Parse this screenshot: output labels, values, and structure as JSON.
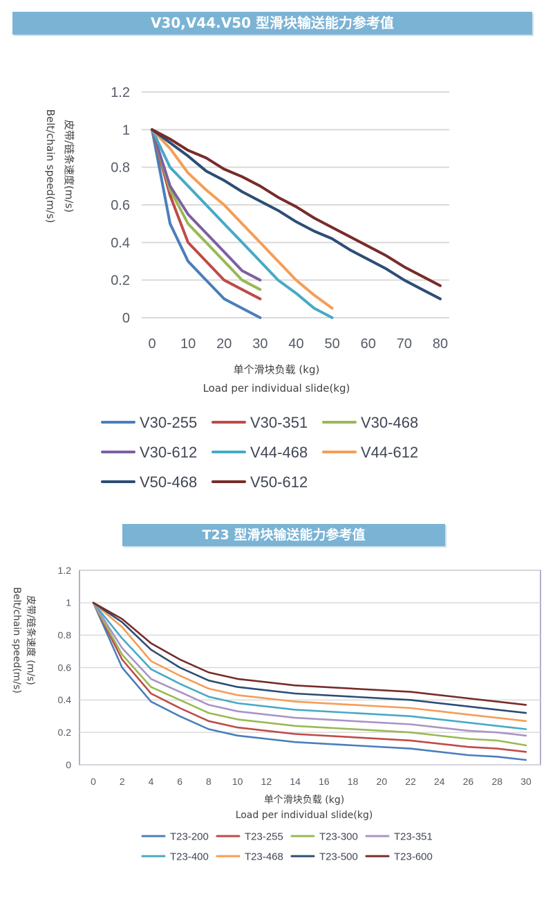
{
  "sections": [
    {
      "banner": "V30,V44.V50  型滑块输送能力参考值"
    },
    {
      "banner": "T23  型滑块输送能力参考值"
    }
  ],
  "chart_data": [
    {
      "type": "line",
      "title": "V30,V44.V50  型滑块输送能力参考值",
      "xlabel": [
        "单个滑块负载 (kg)",
        "Load per individual slide(kg)"
      ],
      "ylabel": [
        "皮带/链条速度(m/s)",
        "Belt/chain speed(m/s)"
      ],
      "xlim": [
        0,
        80
      ],
      "ylim": [
        0,
        1.2
      ],
      "xticks": [
        "0",
        "10",
        "20",
        "30",
        "40",
        "50",
        "60",
        "70",
        "80"
      ],
      "yticks": [
        "0",
        "0.2",
        "0.4",
        "0.6",
        "0.8",
        "1",
        "1.2"
      ],
      "grid": "horizontal",
      "legend_position": "bottom",
      "series": [
        {
          "name": "V30-255",
          "color": "#4a7ebb",
          "x": [
            0,
            5,
            10,
            15,
            20,
            25,
            30
          ],
          "y": [
            1,
            0.5,
            0.3,
            0.2,
            0.1,
            0.05,
            0
          ]
        },
        {
          "name": "V30-351",
          "color": "#be4b48",
          "x": [
            0,
            5,
            10,
            15,
            20,
            25,
            30
          ],
          "y": [
            1,
            0.65,
            0.4,
            0.3,
            0.2,
            0.15,
            0.1
          ]
        },
        {
          "name": "V30-468",
          "color": "#98b954",
          "x": [
            0,
            5,
            10,
            15,
            20,
            25,
            30
          ],
          "y": [
            1,
            0.68,
            0.5,
            0.4,
            0.3,
            0.2,
            0.15
          ]
        },
        {
          "name": "V30-612",
          "color": "#7d5fa0",
          "x": [
            0,
            5,
            10,
            15,
            20,
            25,
            30
          ],
          "y": [
            1,
            0.7,
            0.55,
            0.45,
            0.35,
            0.25,
            0.2
          ]
        },
        {
          "name": "V44-468",
          "color": "#46aac5",
          "x": [
            0,
            5,
            10,
            15,
            20,
            25,
            30,
            35,
            40,
            45,
            50
          ],
          "y": [
            1,
            0.8,
            0.7,
            0.6,
            0.5,
            0.4,
            0.3,
            0.2,
            0.13,
            0.05,
            0
          ]
        },
        {
          "name": "V44-612",
          "color": "#f59d56",
          "x": [
            0,
            5,
            10,
            15,
            20,
            25,
            30,
            35,
            40,
            45,
            50
          ],
          "y": [
            1,
            0.9,
            0.77,
            0.68,
            0.6,
            0.5,
            0.4,
            0.3,
            0.2,
            0.12,
            0.05
          ]
        },
        {
          "name": "V50-468",
          "color": "#2c4d75",
          "x": [
            0,
            5,
            10,
            15,
            20,
            25,
            30,
            35,
            40,
            45,
            50,
            55,
            60,
            65,
            70,
            75,
            80
          ],
          "y": [
            1,
            0.93,
            0.86,
            0.78,
            0.73,
            0.67,
            0.62,
            0.57,
            0.51,
            0.46,
            0.42,
            0.36,
            0.31,
            0.26,
            0.2,
            0.15,
            0.1
          ]
        },
        {
          "name": "V50-612",
          "color": "#772c2a",
          "x": [
            0,
            5,
            10,
            15,
            20,
            25,
            30,
            35,
            40,
            45,
            50,
            55,
            60,
            65,
            70,
            75,
            80
          ],
          "y": [
            1,
            0.95,
            0.89,
            0.85,
            0.79,
            0.75,
            0.7,
            0.64,
            0.59,
            0.53,
            0.48,
            0.43,
            0.38,
            0.33,
            0.27,
            0.22,
            0.17
          ]
        }
      ]
    },
    {
      "type": "line",
      "title": "T23  型滑块输送能力参考值",
      "xlabel": [
        "单个滑块负载 (kg)",
        "Load per individual slide(kg)"
      ],
      "ylabel": [
        "皮带/链条速度 (m/s)",
        "Belt/chain speed(m/s)"
      ],
      "xlim": [
        0,
        30
      ],
      "ylim": [
        0,
        1.2
      ],
      "xticks": [
        "0",
        "2",
        "4",
        "6",
        "8",
        "10",
        "12",
        "14",
        "16",
        "18",
        "20",
        "22",
        "24",
        "26",
        "28",
        "30"
      ],
      "yticks": [
        "0",
        "0.2",
        "0.4",
        "0.6",
        "0.8",
        "1",
        "1.2"
      ],
      "grid": "horizontal",
      "legend_position": "bottom",
      "series": [
        {
          "name": "T23-200",
          "color": "#4a7ebb",
          "x": [
            0,
            2,
            4,
            6,
            8,
            10,
            14,
            22,
            26,
            28,
            30
          ],
          "y": [
            1,
            0.6,
            0.39,
            0.3,
            0.22,
            0.18,
            0.14,
            0.1,
            0.06,
            0.05,
            0.03
          ]
        },
        {
          "name": "T23-255",
          "color": "#be4b48",
          "x": [
            0,
            2,
            4,
            6,
            8,
            10,
            14,
            22,
            26,
            28,
            30
          ],
          "y": [
            1,
            0.65,
            0.44,
            0.35,
            0.27,
            0.23,
            0.19,
            0.15,
            0.11,
            0.1,
            0.08
          ]
        },
        {
          "name": "T23-300",
          "color": "#98b954",
          "x": [
            0,
            2,
            4,
            6,
            8,
            10,
            14,
            22,
            26,
            28,
            30
          ],
          "y": [
            1,
            0.68,
            0.48,
            0.4,
            0.32,
            0.28,
            0.24,
            0.2,
            0.16,
            0.15,
            0.12
          ]
        },
        {
          "name": "T23-351",
          "color": "#a994c6",
          "x": [
            0,
            2,
            4,
            6,
            8,
            10,
            14,
            22,
            26,
            28,
            30
          ],
          "y": [
            1,
            0.72,
            0.53,
            0.45,
            0.37,
            0.33,
            0.29,
            0.25,
            0.21,
            0.2,
            0.18
          ]
        },
        {
          "name": "T23-400",
          "color": "#46aac5",
          "x": [
            0,
            2,
            4,
            6,
            8,
            10,
            14,
            22,
            26,
            28,
            30
          ],
          "y": [
            1,
            0.78,
            0.59,
            0.5,
            0.42,
            0.38,
            0.34,
            0.3,
            0.26,
            0.24,
            0.22
          ]
        },
        {
          "name": "T23-468",
          "color": "#f59d56",
          "x": [
            0,
            2,
            4,
            6,
            8,
            10,
            14,
            22,
            26,
            28,
            30
          ],
          "y": [
            1,
            0.85,
            0.64,
            0.55,
            0.47,
            0.43,
            0.39,
            0.35,
            0.31,
            0.29,
            0.27
          ]
        },
        {
          "name": "T23-500",
          "color": "#2c4d75",
          "x": [
            0,
            2,
            4,
            6,
            8,
            10,
            14,
            22,
            26,
            28,
            30
          ],
          "y": [
            1,
            0.88,
            0.71,
            0.6,
            0.52,
            0.48,
            0.44,
            0.4,
            0.36,
            0.34,
            0.32
          ]
        },
        {
          "name": "T23-600",
          "color": "#772c2a",
          "x": [
            0,
            2,
            4,
            6,
            8,
            10,
            14,
            22,
            26,
            28,
            30
          ],
          "y": [
            1,
            0.9,
            0.75,
            0.65,
            0.57,
            0.53,
            0.49,
            0.45,
            0.41,
            0.39,
            0.37
          ]
        }
      ]
    }
  ]
}
